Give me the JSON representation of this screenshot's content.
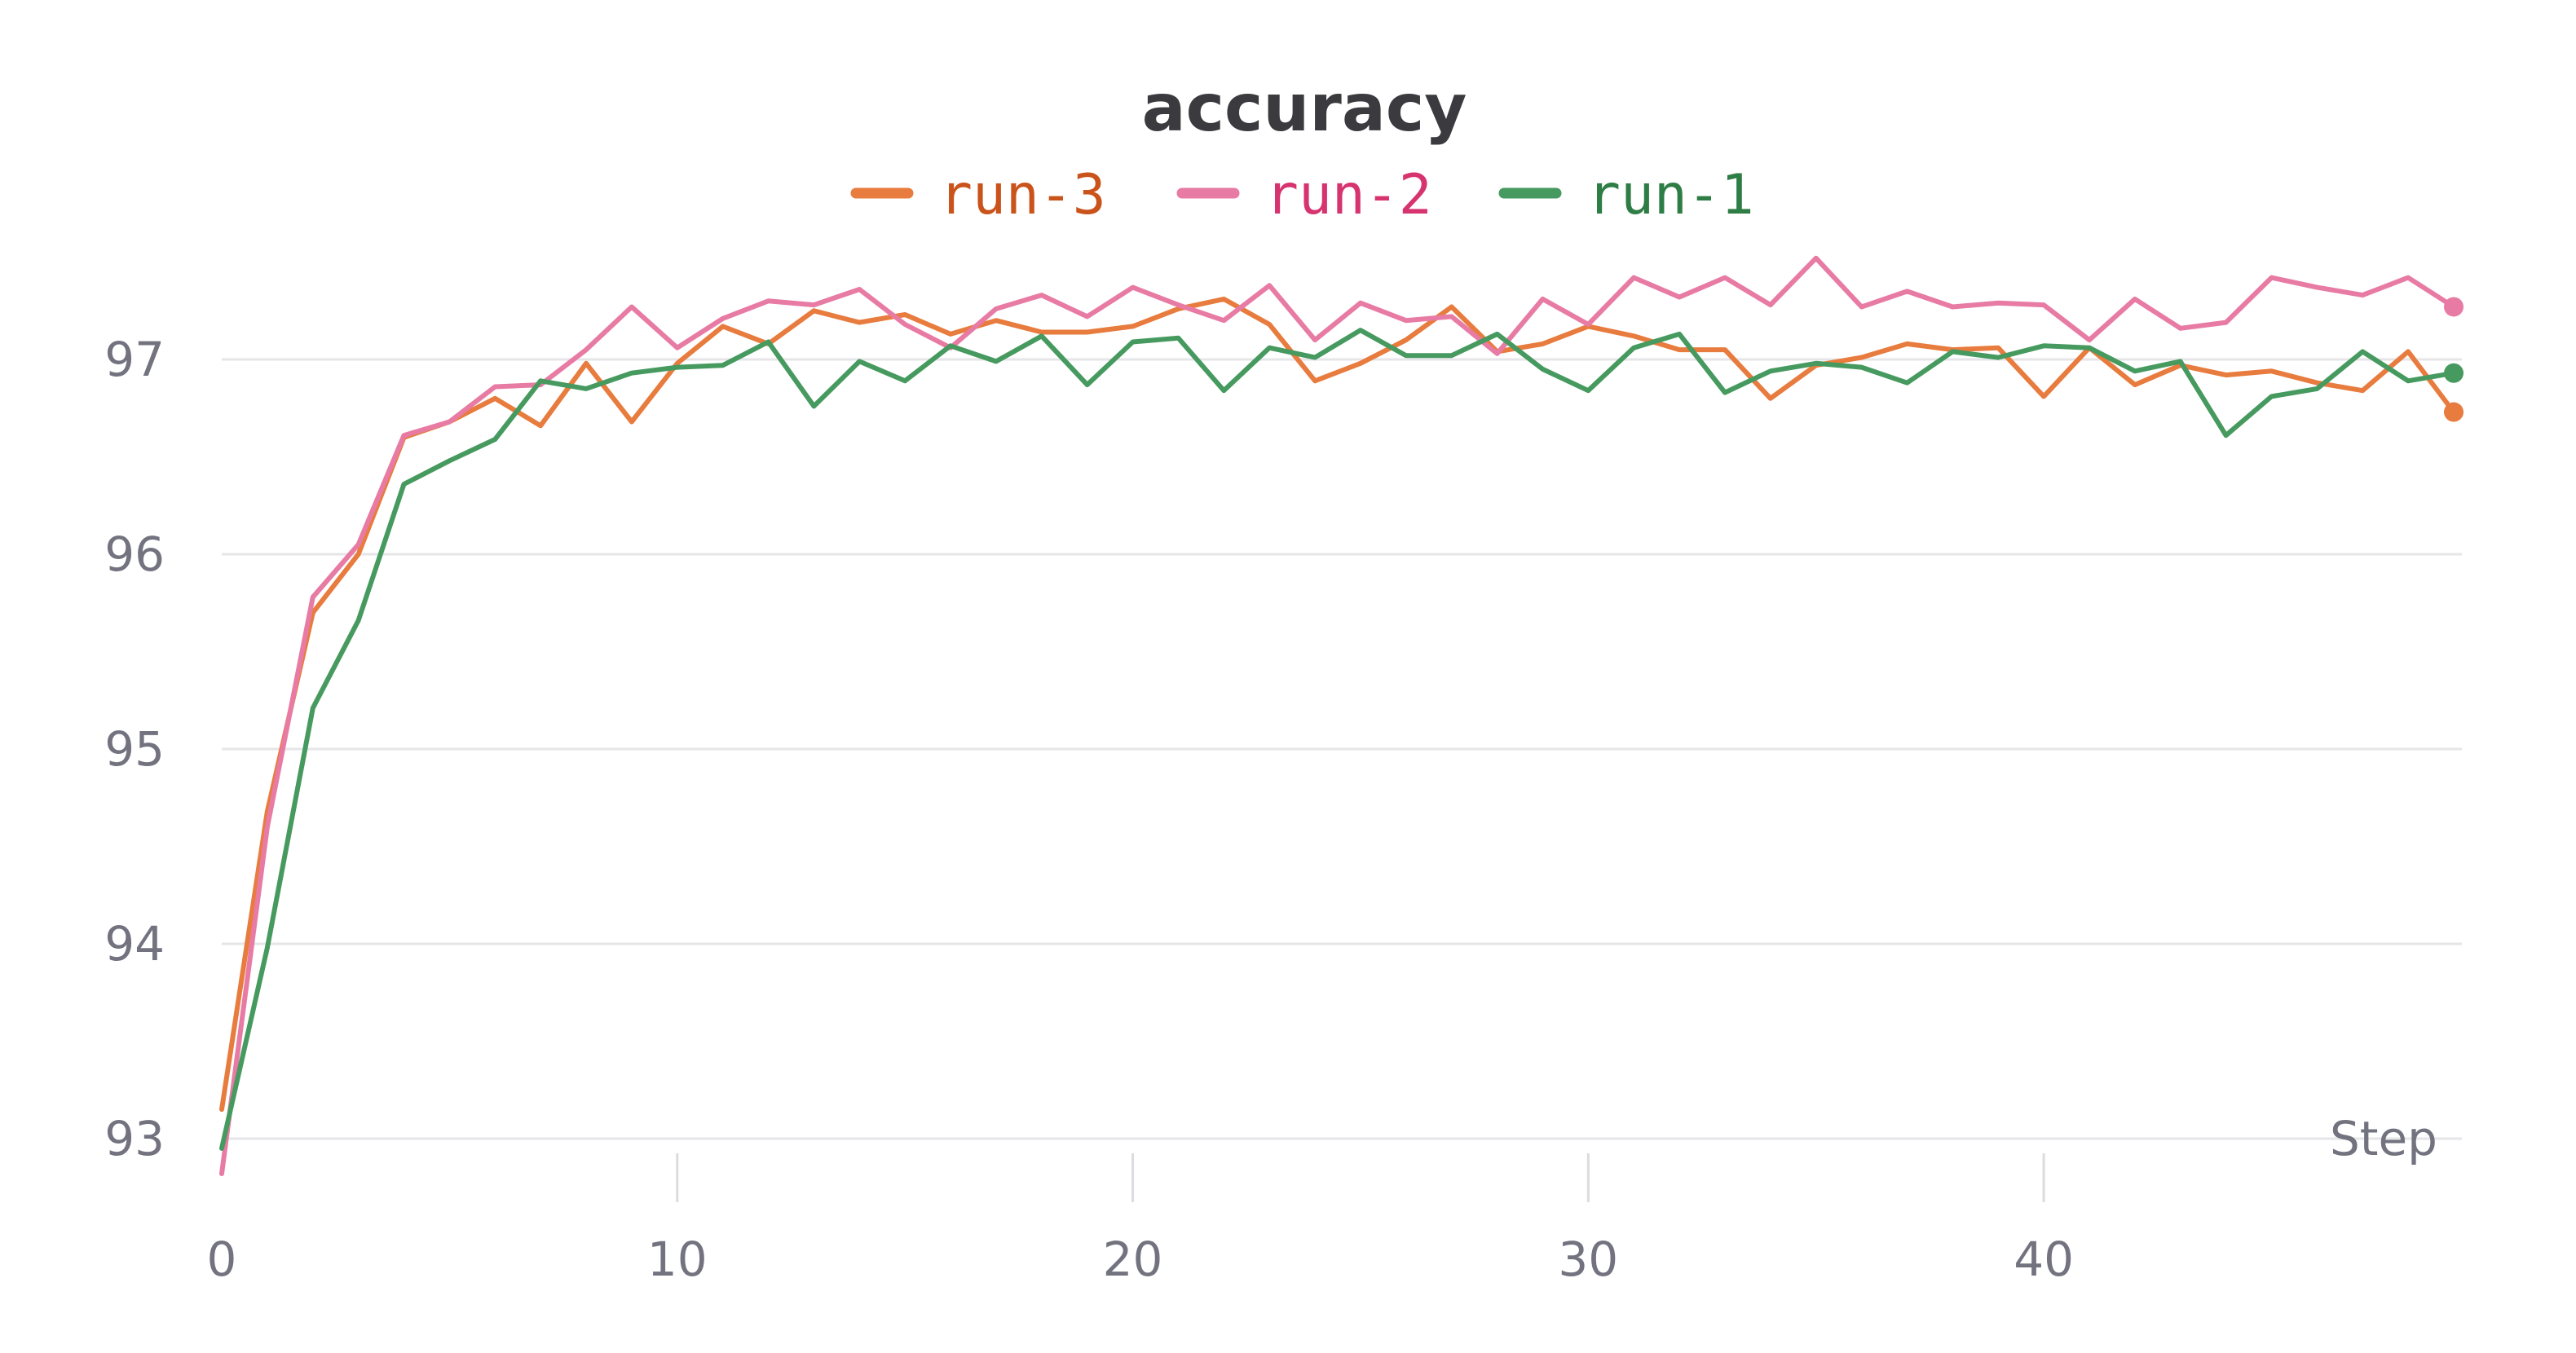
{
  "chart_data": {
    "type": "line",
    "title": "accuracy",
    "xlabel": "Step",
    "ylabel": "",
    "xlim": [
      0,
      49
    ],
    "ylim": [
      92.8,
      98.6
    ],
    "x_ticks": [
      0,
      10,
      20,
      30,
      40
    ],
    "y_ticks": [
      93,
      94,
      95,
      96,
      97
    ],
    "grid": "horizontal",
    "legend_position": "top-center",
    "series": [
      {
        "name": "run-3",
        "color": "#e87b3e",
        "label_color": "#c9531b",
        "values": [
          93.15,
          94.68,
          95.7,
          96.0,
          96.6,
          96.68,
          96.8,
          96.66,
          96.98,
          96.68,
          96.98,
          97.17,
          97.08,
          97.25,
          97.19,
          97.23,
          97.13,
          97.2,
          97.14,
          97.14,
          97.17,
          97.26,
          97.31,
          97.18,
          96.89,
          96.98,
          97.1,
          97.27,
          97.04,
          97.08,
          97.17,
          97.12,
          97.05,
          97.05,
          96.8,
          96.97,
          97.01,
          97.08,
          97.05,
          97.06,
          96.81,
          97.06,
          96.87,
          96.97,
          96.92,
          96.94,
          96.88,
          96.84,
          97.04,
          96.73
        ]
      },
      {
        "name": "run-2",
        "color": "#e87ba4",
        "label_color": "#d6336f",
        "values": [
          92.82,
          94.6,
          95.78,
          96.05,
          96.61,
          96.68,
          96.86,
          96.87,
          97.05,
          97.27,
          97.06,
          97.21,
          97.3,
          97.28,
          97.36,
          97.18,
          97.06,
          97.26,
          97.33,
          97.22,
          97.37,
          97.28,
          97.2,
          97.38,
          97.1,
          97.29,
          97.2,
          97.22,
          97.03,
          97.31,
          97.18,
          97.42,
          97.32,
          97.42,
          97.28,
          97.52,
          97.27,
          97.35,
          97.27,
          97.29,
          97.28,
          97.1,
          97.31,
          97.16,
          97.19,
          97.42,
          97.37,
          97.33,
          97.42,
          97.27
        ]
      },
      {
        "name": "run-1",
        "color": "#479a5f",
        "label_color": "#2e7d45",
        "values": [
          92.95,
          93.98,
          95.21,
          95.66,
          96.36,
          96.48,
          96.59,
          96.89,
          96.85,
          96.93,
          96.96,
          96.97,
          97.09,
          96.76,
          96.99,
          96.89,
          97.07,
          96.99,
          97.12,
          96.87,
          97.09,
          97.11,
          96.84,
          97.06,
          97.01,
          97.15,
          97.02,
          97.02,
          97.13,
          96.95,
          96.84,
          97.06,
          97.13,
          96.83,
          96.94,
          96.98,
          96.96,
          96.88,
          97.04,
          97.01,
          97.07,
          97.06,
          96.94,
          96.99,
          96.61,
          96.81,
          96.85,
          97.04,
          96.89,
          96.93
        ]
      }
    ]
  }
}
